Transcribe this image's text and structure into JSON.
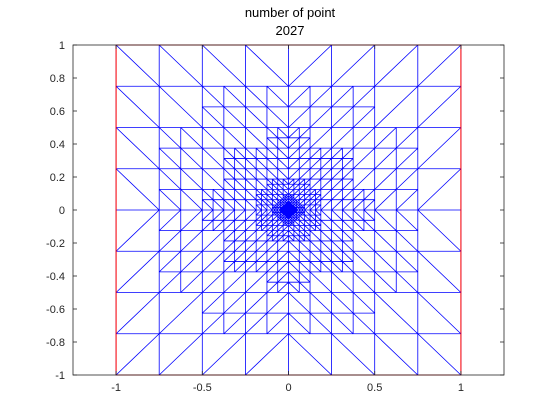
{
  "chart_data": {
    "type": "mesh",
    "title_lines": [
      "number of point",
      "2027"
    ],
    "xlim": [
      -1.25,
      1.25
    ],
    "ylim": [
      -1,
      1
    ],
    "xticks": [
      -1,
      -0.5,
      0,
      0.5,
      1
    ],
    "xtick_labels": [
      "-1",
      "-0.5",
      "0",
      "0.5",
      "1"
    ],
    "yticks": [
      -1,
      -0.8,
      -0.6,
      -0.4,
      -0.2,
      0,
      0.2,
      0.4,
      0.6,
      0.8,
      1
    ],
    "ytick_labels": [
      "-1",
      "-0.8",
      "-0.6",
      "-0.4",
      "-0.2",
      "0",
      "0.2",
      "0.4",
      "0.6",
      "0.8",
      "1"
    ],
    "domain": {
      "xmin": -1,
      "xmax": 1,
      "ymin": -1,
      "ymax": 1
    },
    "refinement_center": [
      0,
      0
    ],
    "mesh_color": "#0000ff",
    "boundary_color": "#ff0000",
    "axes_color": "#262626"
  }
}
